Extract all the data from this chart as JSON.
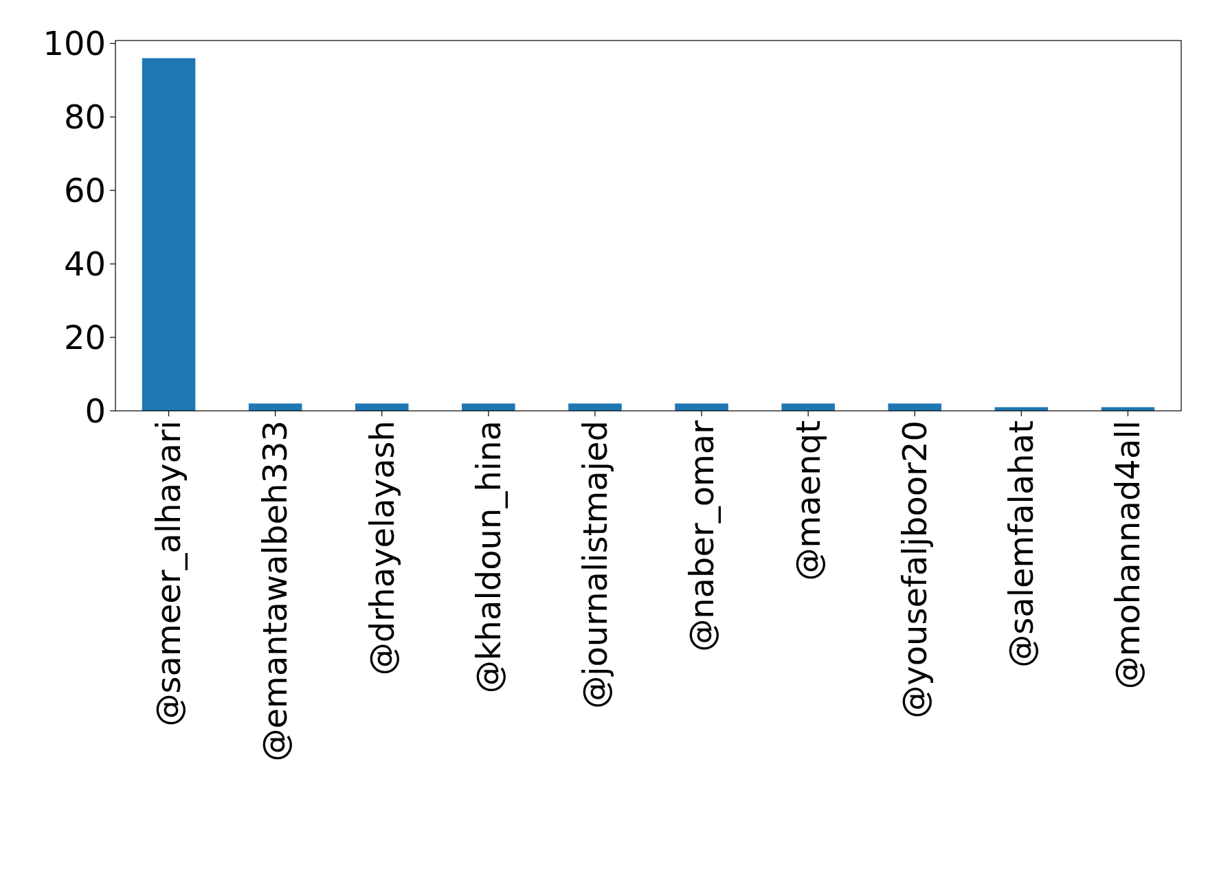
{
  "chart_data": {
    "type": "bar",
    "categories": [
      "@sameer_alhayari",
      "@emantawalbeh333",
      "@drhayelayash",
      "@khaldoun_hina",
      "@journalistmajed",
      "@naber_omar",
      "@maenqt",
      "@yousefaljboor20",
      "@salemfalahat",
      "@mohannad4all"
    ],
    "values": [
      96,
      2,
      2,
      2,
      2,
      2,
      2,
      2,
      1,
      1
    ],
    "color": "#1f77b4",
    "ylim": [
      0,
      100.8
    ],
    "yticks": [
      0,
      20,
      40,
      60,
      80,
      100
    ],
    "grid": false
  }
}
